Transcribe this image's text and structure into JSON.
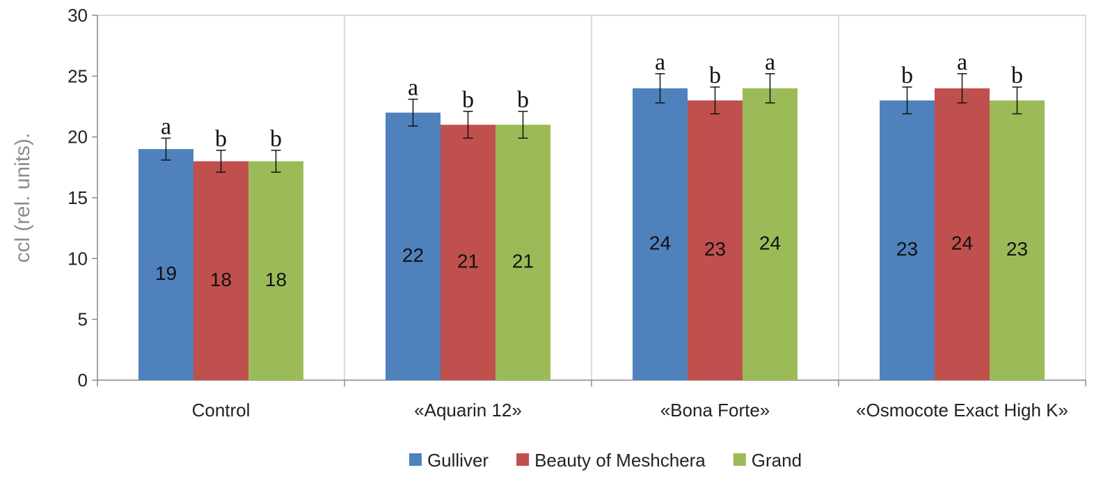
{
  "chart_data": {
    "type": "bar",
    "title": "",
    "xlabel": "",
    "ylabel": "ccl (rel. units).",
    "ylim": [
      0,
      30
    ],
    "yticks": [
      0,
      5,
      10,
      15,
      20,
      25,
      30
    ],
    "grid": "vertical-category-separators",
    "legend_position": "bottom",
    "categories": [
      "Control",
      "«Aquarin 12»",
      "«Bona Forte»",
      "«Osmocote Exact High K»"
    ],
    "series": [
      {
        "name": "Gulliver",
        "color": "#4f81bd",
        "values": [
          19,
          22,
          24,
          23
        ],
        "errors": [
          0.9,
          1.1,
          1.2,
          1.1
        ],
        "value_labels": [
          "19",
          "22",
          "24",
          "23"
        ],
        "significance": [
          "a",
          "a",
          "a",
          "b"
        ]
      },
      {
        "name": "Beauty of Meshchera",
        "color": "#c0504d",
        "values": [
          18,
          21,
          23,
          24
        ],
        "errors": [
          0.9,
          1.1,
          1.1,
          1.2
        ],
        "value_labels": [
          "18",
          "21",
          "23",
          "24"
        ],
        "significance": [
          "b",
          "b",
          "b",
          "a"
        ]
      },
      {
        "name": "Grand",
        "color": "#9bbb59",
        "values": [
          18,
          21,
          24,
          23
        ],
        "errors": [
          0.9,
          1.1,
          1.2,
          1.1
        ],
        "value_labels": [
          "18",
          "21",
          "24",
          "23"
        ],
        "significance": [
          "b",
          "b",
          "a",
          "b"
        ]
      }
    ]
  }
}
